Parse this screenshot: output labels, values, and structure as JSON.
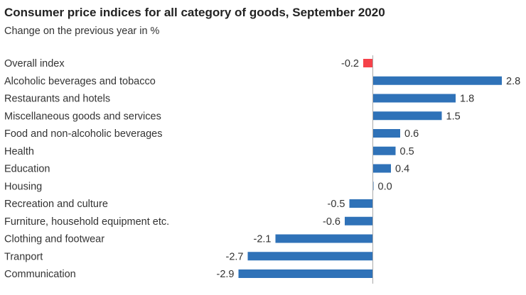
{
  "chart_data": {
    "type": "bar",
    "orientation": "horizontal",
    "title": "Consumer price indices for all category of goods, September 2020",
    "subtitle": "Change on the previous year in %",
    "categories": [
      "Overall index",
      "Alcoholic beverages and tobacco",
      "Restaurants and hotels",
      "Miscellaneous goods and services",
      "Food and non-alcoholic beverages",
      "Health",
      "Education",
      "Housing",
      "Recreation and culture",
      "Furniture, household equipment etc.",
      "Clothing and footwear",
      "Tranport",
      "Communication"
    ],
    "values": [
      -0.2,
      2.8,
      1.8,
      1.5,
      0.6,
      0.5,
      0.4,
      0.0,
      -0.5,
      -0.6,
      -2.1,
      -2.7,
      -2.9
    ],
    "labels": [
      "-0.2",
      "2.8",
      "1.8",
      "1.5",
      "0.6",
      "0.5",
      "0.4",
      "0.0",
      "-0.5",
      "-0.6",
      "-2.1",
      "-2.7",
      "-2.9"
    ],
    "highlight_category": "Overall index",
    "colors": {
      "default": "#2f72b8",
      "highlight": "#f5424a",
      "axis": "#aaaaaa"
    },
    "grid": false,
    "legend": "none"
  }
}
